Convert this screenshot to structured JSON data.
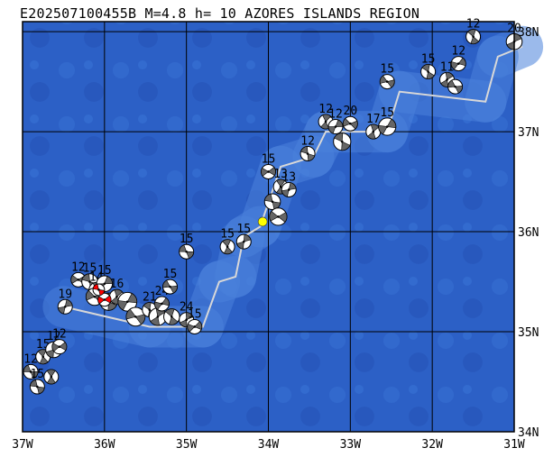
{
  "title": "E202507100455B M=4.8 h= 10 AZORES ISLANDS REGION",
  "map": {
    "lon_labels": [
      "37W",
      "36W",
      "35W",
      "34W",
      "33W",
      "32W",
      "31W"
    ],
    "lat_labels": [
      "38N",
      "37N",
      "36N",
      "35N",
      "34N"
    ],
    "lon_values": [
      -37,
      -36,
      -35,
      -34,
      -33,
      -32,
      -31
    ],
    "lat_values": [
      38,
      37,
      36,
      35,
      34
    ],
    "extent": {
      "lon": [
        -37,
        -31
      ],
      "lat": [
        34,
        38.1
      ]
    },
    "colors": {
      "ocean": "#2c60c6",
      "ocean_shallow": "#4b82dc",
      "ocean_deep": "#1f4fb0",
      "grid": "#000000",
      "plate_boundary": "#d8d8d8",
      "mechanism_dark": "#666666",
      "mechanism_light": "#ffffff",
      "highlight_mechanism": "#ff0000",
      "epicenter": "#ffff00"
    },
    "epicenter": {
      "lon": -34.07,
      "lat": 36.1,
      "icon": "yellow-dot"
    },
    "mechanisms": [
      {
        "lon": -36.9,
        "lat": 34.6,
        "label": "12",
        "size": 1.0
      },
      {
        "lon": -36.75,
        "lat": 34.75,
        "label": "15",
        "size": 1.0
      },
      {
        "lon": -36.62,
        "lat": 34.82,
        "label": "12",
        "size": 1.1
      },
      {
        "lon": -36.55,
        "lat": 34.85,
        "label": "12",
        "size": 1.0
      },
      {
        "lon": -36.82,
        "lat": 34.45,
        "label": "15",
        "size": 1.0
      },
      {
        "lon": -36.65,
        "lat": 34.55,
        "label": "",
        "size": 1.0
      },
      {
        "lon": -36.48,
        "lat": 35.25,
        "label": "19",
        "size": 1.0
      },
      {
        "lon": -36.32,
        "lat": 35.52,
        "label": "12",
        "size": 1.0
      },
      {
        "lon": -36.18,
        "lat": 35.5,
        "label": "15",
        "size": 1.1
      },
      {
        "lon": -36.1,
        "lat": 35.42,
        "label": "14",
        "size": 1.0
      },
      {
        "lon": -36.0,
        "lat": 35.48,
        "label": "15",
        "size": 1.1
      },
      {
        "lon": -36.12,
        "lat": 35.35,
        "label": "",
        "size": 1.2
      },
      {
        "lon": -35.95,
        "lat": 35.3,
        "label": "",
        "size": 1.2
      },
      {
        "lon": -35.85,
        "lat": 35.35,
        "label": "16",
        "size": 1.0
      },
      {
        "lon": -35.72,
        "lat": 35.3,
        "label": "",
        "size": 1.3
      },
      {
        "lon": -35.62,
        "lat": 35.15,
        "label": "",
        "size": 1.3
      },
      {
        "lon": -35.45,
        "lat": 35.22,
        "label": "21",
        "size": 1.0
      },
      {
        "lon": -35.35,
        "lat": 35.15,
        "label": "",
        "size": 1.2
      },
      {
        "lon": -35.3,
        "lat": 35.28,
        "label": "24",
        "size": 1.0
      },
      {
        "lon": -35.2,
        "lat": 35.45,
        "label": "15",
        "size": 1.0
      },
      {
        "lon": -35.18,
        "lat": 35.15,
        "label": "",
        "size": 1.1
      },
      {
        "lon": -35.0,
        "lat": 35.12,
        "label": "24",
        "size": 1.0
      },
      {
        "lon": -34.9,
        "lat": 35.05,
        "label": "15",
        "size": 1.0
      },
      {
        "lon": -35.0,
        "lat": 35.8,
        "label": "15",
        "size": 1.0
      },
      {
        "lon": -34.5,
        "lat": 35.85,
        "label": "15",
        "size": 1.0
      },
      {
        "lon": -34.3,
        "lat": 35.9,
        "label": "15",
        "size": 1.0
      },
      {
        "lon": -34.0,
        "lat": 36.6,
        "label": "15",
        "size": 1.0
      },
      {
        "lon": -33.95,
        "lat": 36.3,
        "label": "",
        "size": 1.1
      },
      {
        "lon": -33.85,
        "lat": 36.45,
        "label": "13",
        "size": 1.0
      },
      {
        "lon": -33.75,
        "lat": 36.42,
        "label": "13",
        "size": 1.0
      },
      {
        "lon": -33.88,
        "lat": 36.15,
        "label": "",
        "size": 1.2
      },
      {
        "lon": -33.52,
        "lat": 36.78,
        "label": "12",
        "size": 1.0
      },
      {
        "lon": -33.3,
        "lat": 37.1,
        "label": "12",
        "size": 1.0
      },
      {
        "lon": -33.18,
        "lat": 37.05,
        "label": "12",
        "size": 1.0
      },
      {
        "lon": -33.0,
        "lat": 37.08,
        "label": "20",
        "size": 1.0
      },
      {
        "lon": -33.1,
        "lat": 36.9,
        "label": "",
        "size": 1.2
      },
      {
        "lon": -32.72,
        "lat": 37.0,
        "label": "17",
        "size": 1.0
      },
      {
        "lon": -32.55,
        "lat": 37.05,
        "label": "15",
        "size": 1.2
      },
      {
        "lon": -32.55,
        "lat": 37.5,
        "label": "15",
        "size": 1.0
      },
      {
        "lon": -32.05,
        "lat": 37.6,
        "label": "15",
        "size": 1.0
      },
      {
        "lon": -31.82,
        "lat": 37.52,
        "label": "11",
        "size": 1.0
      },
      {
        "lon": -31.68,
        "lat": 37.68,
        "label": "12",
        "size": 1.0
      },
      {
        "lon": -31.72,
        "lat": 37.45,
        "label": "",
        "size": 1.0
      },
      {
        "lon": -31.5,
        "lat": 37.95,
        "label": "12",
        "size": 1.0
      },
      {
        "lon": -31.0,
        "lat": 37.9,
        "label": "20",
        "size": 1.1
      }
    ],
    "highlight_mechanisms": [
      {
        "lon": -36.0,
        "lat": 35.32,
        "label": "",
        "size": 0.9
      },
      {
        "lon": -36.07,
        "lat": 35.42,
        "label": "",
        "size": 0.8
      }
    ],
    "plate_boundary": [
      [
        -36.5,
        35.25
      ],
      [
        -35.45,
        35.05
      ],
      [
        -34.8,
        35.05
      ],
      [
        -34.6,
        35.5
      ],
      [
        -34.4,
        35.55
      ],
      [
        -34.3,
        35.95
      ],
      [
        -34.1,
        36.05
      ],
      [
        -33.85,
        36.65
      ],
      [
        -33.45,
        36.75
      ],
      [
        -33.3,
        37.0
      ],
      [
        -32.55,
        37.0
      ],
      [
        -32.4,
        37.4
      ],
      [
        -31.35,
        37.3
      ],
      [
        -31.2,
        37.75
      ],
      [
        -30.9,
        37.85
      ]
    ]
  }
}
